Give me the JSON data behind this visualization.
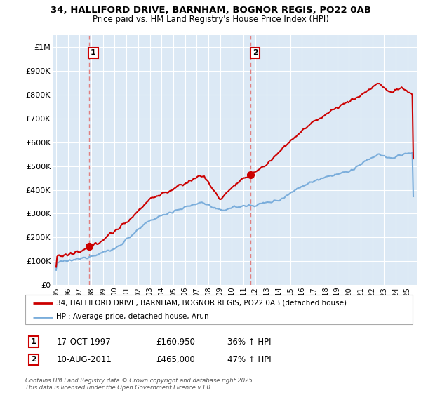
{
  "title_line1": "34, HALLIFORD DRIVE, BARNHAM, BOGNOR REGIS, PO22 0AB",
  "title_line2": "Price paid vs. HM Land Registry's House Price Index (HPI)",
  "ylim": [
    0,
    1050000
  ],
  "yticks": [
    0,
    100000,
    200000,
    300000,
    400000,
    500000,
    600000,
    700000,
    800000,
    900000,
    1000000
  ],
  "ytick_labels": [
    "£0",
    "£100K",
    "£200K",
    "£300K",
    "£400K",
    "£500K",
    "£600K",
    "£700K",
    "£800K",
    "£900K",
    "£1M"
  ],
  "legend_line1": "34, HALLIFORD DRIVE, BARNHAM, BOGNOR REGIS, PO22 0AB (detached house)",
  "legend_line2": "HPI: Average price, detached house, Arun",
  "purchase1_date": "17-OCT-1997",
  "purchase1_price": 160950,
  "purchase1_label": "£160,950",
  "purchase1_hpi": "36% ↑ HPI",
  "purchase2_date": "10-AUG-2011",
  "purchase2_price": 465000,
  "purchase2_label": "£465,000",
  "purchase2_hpi": "47% ↑ HPI",
  "red_color": "#cc0000",
  "blue_color": "#7aaddb",
  "dashed_color": "#e08080",
  "chart_bg_color": "#dce9f5",
  "grid_color": "#ffffff",
  "footer_text": "Contains HM Land Registry data © Crown copyright and database right 2025.\nThis data is licensed under the Open Government Licence v3.0.",
  "purchase1_x": 1997.79,
  "purchase2_x": 2011.61,
  "xlim_left": 1994.7,
  "xlim_right": 2025.8
}
